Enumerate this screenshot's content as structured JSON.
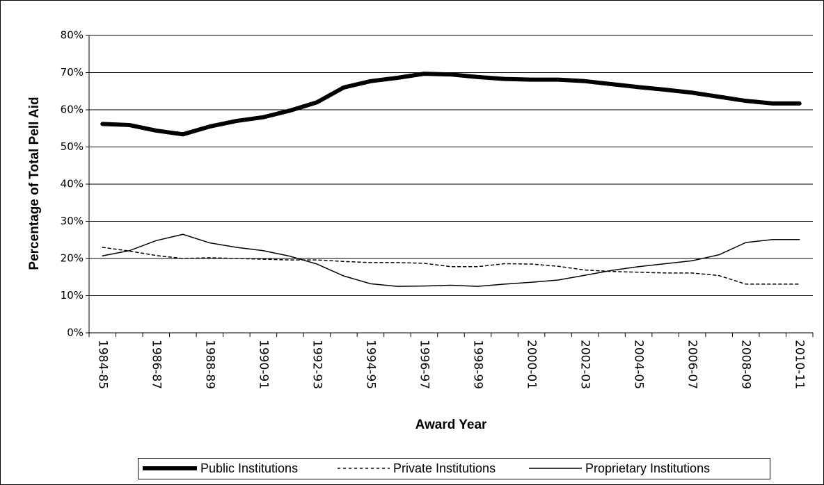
{
  "chart_data": {
    "type": "line",
    "x_label": "Award Year",
    "y_label": "Percentage of Total Pell Aid",
    "categories": [
      "1984-85",
      null,
      "1986-87",
      null,
      "1988-89",
      null,
      "1990-91",
      null,
      "1992-93",
      null,
      "1994-95",
      null,
      "1996-97",
      null,
      "1998-99",
      null,
      "2000-01",
      null,
      "2002-03",
      null,
      "2004-05",
      null,
      "2006-07",
      null,
      "2008-09",
      null,
      "2010-11"
    ],
    "ylim": [
      0,
      80
    ],
    "yticks": [
      {
        "value": 0,
        "label": "0%"
      },
      {
        "value": 10,
        "label": "10%"
      },
      {
        "value": 20,
        "label": "20%"
      },
      {
        "value": 30,
        "label": "30%"
      },
      {
        "value": 40,
        "label": "40%"
      },
      {
        "value": 50,
        "label": "50%"
      },
      {
        "value": 60,
        "label": "60%"
      },
      {
        "value": 70,
        "label": "70%"
      },
      {
        "value": 80,
        "label": "80%"
      }
    ],
    "grid": true,
    "legend": "bottom",
    "series": [
      {
        "name": "Public Institutions",
        "color": "#000000",
        "width": 6,
        "dash": "solid",
        "values": [
          56.2,
          55.9,
          54.4,
          53.4,
          55.5,
          57.0,
          58.0,
          59.8,
          62.0,
          66.0,
          67.7,
          68.6,
          69.7,
          69.5,
          68.8,
          68.3,
          68.1,
          68.1,
          67.7,
          66.9,
          66.1,
          65.4,
          64.6,
          63.5,
          62.4,
          61.7,
          61.7
        ]
      },
      {
        "name": "Private Institutions",
        "color": "#000000",
        "width": 1.5,
        "dash": "dashed",
        "values": [
          23.0,
          22.0,
          20.8,
          20.0,
          20.2,
          20.0,
          19.8,
          19.6,
          19.6,
          19.2,
          18.9,
          18.9,
          18.7,
          17.8,
          17.8,
          18.6,
          18.5,
          17.9,
          16.9,
          16.5,
          16.3,
          16.1,
          16.1,
          15.4,
          13.1,
          13.1,
          13.1
        ]
      },
      {
        "name": "Proprietary Institutions",
        "color": "#000000",
        "width": 1.5,
        "dash": "solid",
        "values": [
          20.7,
          22.1,
          24.8,
          26.5,
          24.2,
          23.0,
          22.1,
          20.6,
          18.5,
          15.3,
          13.2,
          12.5,
          12.6,
          12.8,
          12.5,
          13.1,
          13.6,
          14.2,
          15.5,
          16.8,
          17.8,
          18.6,
          19.4,
          21.0,
          24.3,
          25.1,
          25.1
        ]
      }
    ]
  }
}
